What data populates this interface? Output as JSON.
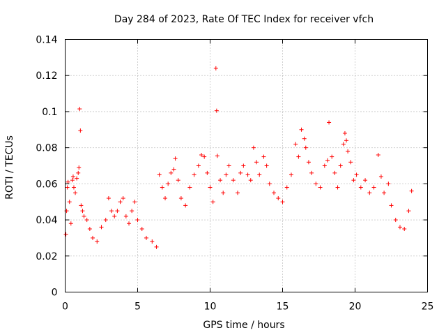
{
  "chart_data": {
    "type": "scatter",
    "title": "Day 284 of 2023, Rate Of TEC Index for receiver vfch",
    "xlabel": "GPS time / hours",
    "ylabel": "ROTI / TECUs",
    "xlim": [
      0,
      25
    ],
    "ylim": [
      0,
      0.14
    ],
    "xticks": [
      0,
      5,
      10,
      15,
      20,
      25
    ],
    "xtick_labels": [
      "0",
      "5",
      "10",
      "15",
      "20",
      "25"
    ],
    "yticks": [
      0,
      0.02,
      0.04,
      0.06,
      0.08,
      0.1,
      0.12,
      0.14
    ],
    "ytick_labels": [
      "0",
      "0.02",
      "0.04",
      "0.06",
      "0.08",
      "0.1",
      "0.12",
      "0.14"
    ],
    "grid": true,
    "marker": "+",
    "color": "#ff0000",
    "series": [
      {
        "name": "ROTI vfch",
        "points": [
          [
            0.05,
            0.032
          ],
          [
            0.1,
            0.045
          ],
          [
            0.15,
            0.058
          ],
          [
            0.2,
            0.061
          ],
          [
            0.3,
            0.05
          ],
          [
            0.4,
            0.038
          ],
          [
            0.5,
            0.062
          ],
          [
            0.55,
            0.064
          ],
          [
            0.6,
            0.058
          ],
          [
            0.7,
            0.055
          ],
          [
            0.8,
            0.063
          ],
          [
            0.9,
            0.066
          ],
          [
            0.95,
            0.069
          ],
          [
            1.0,
            0.1015
          ],
          [
            1.05,
            0.0895
          ],
          [
            1.1,
            0.048
          ],
          [
            1.2,
            0.045
          ],
          [
            1.3,
            0.042
          ],
          [
            1.5,
            0.04
          ],
          [
            1.7,
            0.035
          ],
          [
            1.9,
            0.03
          ],
          [
            2.2,
            0.028
          ],
          [
            2.5,
            0.036
          ],
          [
            2.8,
            0.04
          ],
          [
            3.0,
            0.052
          ],
          [
            3.2,
            0.045
          ],
          [
            3.4,
            0.042
          ],
          [
            3.6,
            0.045
          ],
          [
            3.8,
            0.05
          ],
          [
            4.0,
            0.052
          ],
          [
            4.2,
            0.042
          ],
          [
            4.4,
            0.038
          ],
          [
            4.6,
            0.045
          ],
          [
            4.8,
            0.05
          ],
          [
            5.0,
            0.04
          ],
          [
            5.3,
            0.035
          ],
          [
            5.6,
            0.03
          ],
          [
            6.0,
            0.028
          ],
          [
            6.3,
            0.025
          ],
          [
            6.5,
            0.065
          ],
          [
            6.7,
            0.058
          ],
          [
            6.9,
            0.052
          ],
          [
            7.1,
            0.06
          ],
          [
            7.3,
            0.066
          ],
          [
            7.5,
            0.068
          ],
          [
            7.6,
            0.074
          ],
          [
            7.8,
            0.062
          ],
          [
            8.0,
            0.052
          ],
          [
            8.3,
            0.048
          ],
          [
            8.6,
            0.058
          ],
          [
            8.9,
            0.065
          ],
          [
            9.2,
            0.07
          ],
          [
            9.4,
            0.076
          ],
          [
            9.6,
            0.075
          ],
          [
            9.8,
            0.066
          ],
          [
            10.0,
            0.058
          ],
          [
            10.2,
            0.05
          ],
          [
            10.4,
            0.124
          ],
          [
            10.45,
            0.1005
          ],
          [
            10.5,
            0.0755
          ],
          [
            10.7,
            0.062
          ],
          [
            10.9,
            0.055
          ],
          [
            11.1,
            0.065
          ],
          [
            11.3,
            0.07
          ],
          [
            11.6,
            0.062
          ],
          [
            11.9,
            0.055
          ],
          [
            12.1,
            0.066
          ],
          [
            12.3,
            0.07
          ],
          [
            12.6,
            0.065
          ],
          [
            12.8,
            0.062
          ],
          [
            13.0,
            0.08
          ],
          [
            13.2,
            0.072
          ],
          [
            13.4,
            0.065
          ],
          [
            13.7,
            0.075
          ],
          [
            13.9,
            0.07
          ],
          [
            14.1,
            0.06
          ],
          [
            14.4,
            0.055
          ],
          [
            14.7,
            0.052
          ],
          [
            15.0,
            0.05
          ],
          [
            15.3,
            0.058
          ],
          [
            15.6,
            0.065
          ],
          [
            15.9,
            0.082
          ],
          [
            16.1,
            0.075
          ],
          [
            16.3,
            0.09
          ],
          [
            16.5,
            0.085
          ],
          [
            16.6,
            0.08
          ],
          [
            16.8,
            0.072
          ],
          [
            17.0,
            0.066
          ],
          [
            17.3,
            0.06
          ],
          [
            17.6,
            0.058
          ],
          [
            17.9,
            0.07
          ],
          [
            18.1,
            0.073
          ],
          [
            18.2,
            0.094
          ],
          [
            18.4,
            0.075
          ],
          [
            18.6,
            0.066
          ],
          [
            18.8,
            0.058
          ],
          [
            19.0,
            0.07
          ],
          [
            19.2,
            0.082
          ],
          [
            19.3,
            0.088
          ],
          [
            19.4,
            0.084
          ],
          [
            19.5,
            0.078
          ],
          [
            19.7,
            0.072
          ],
          [
            19.9,
            0.062
          ],
          [
            20.1,
            0.065
          ],
          [
            20.4,
            0.058
          ],
          [
            20.7,
            0.062
          ],
          [
            21.0,
            0.055
          ],
          [
            21.3,
            0.058
          ],
          [
            21.6,
            0.076
          ],
          [
            21.8,
            0.064
          ],
          [
            22.0,
            0.055
          ],
          [
            22.3,
            0.06
          ],
          [
            22.5,
            0.048
          ],
          [
            22.8,
            0.04
          ],
          [
            23.1,
            0.036
          ],
          [
            23.4,
            0.035
          ],
          [
            23.7,
            0.045
          ],
          [
            23.9,
            0.056
          ]
        ]
      }
    ]
  }
}
